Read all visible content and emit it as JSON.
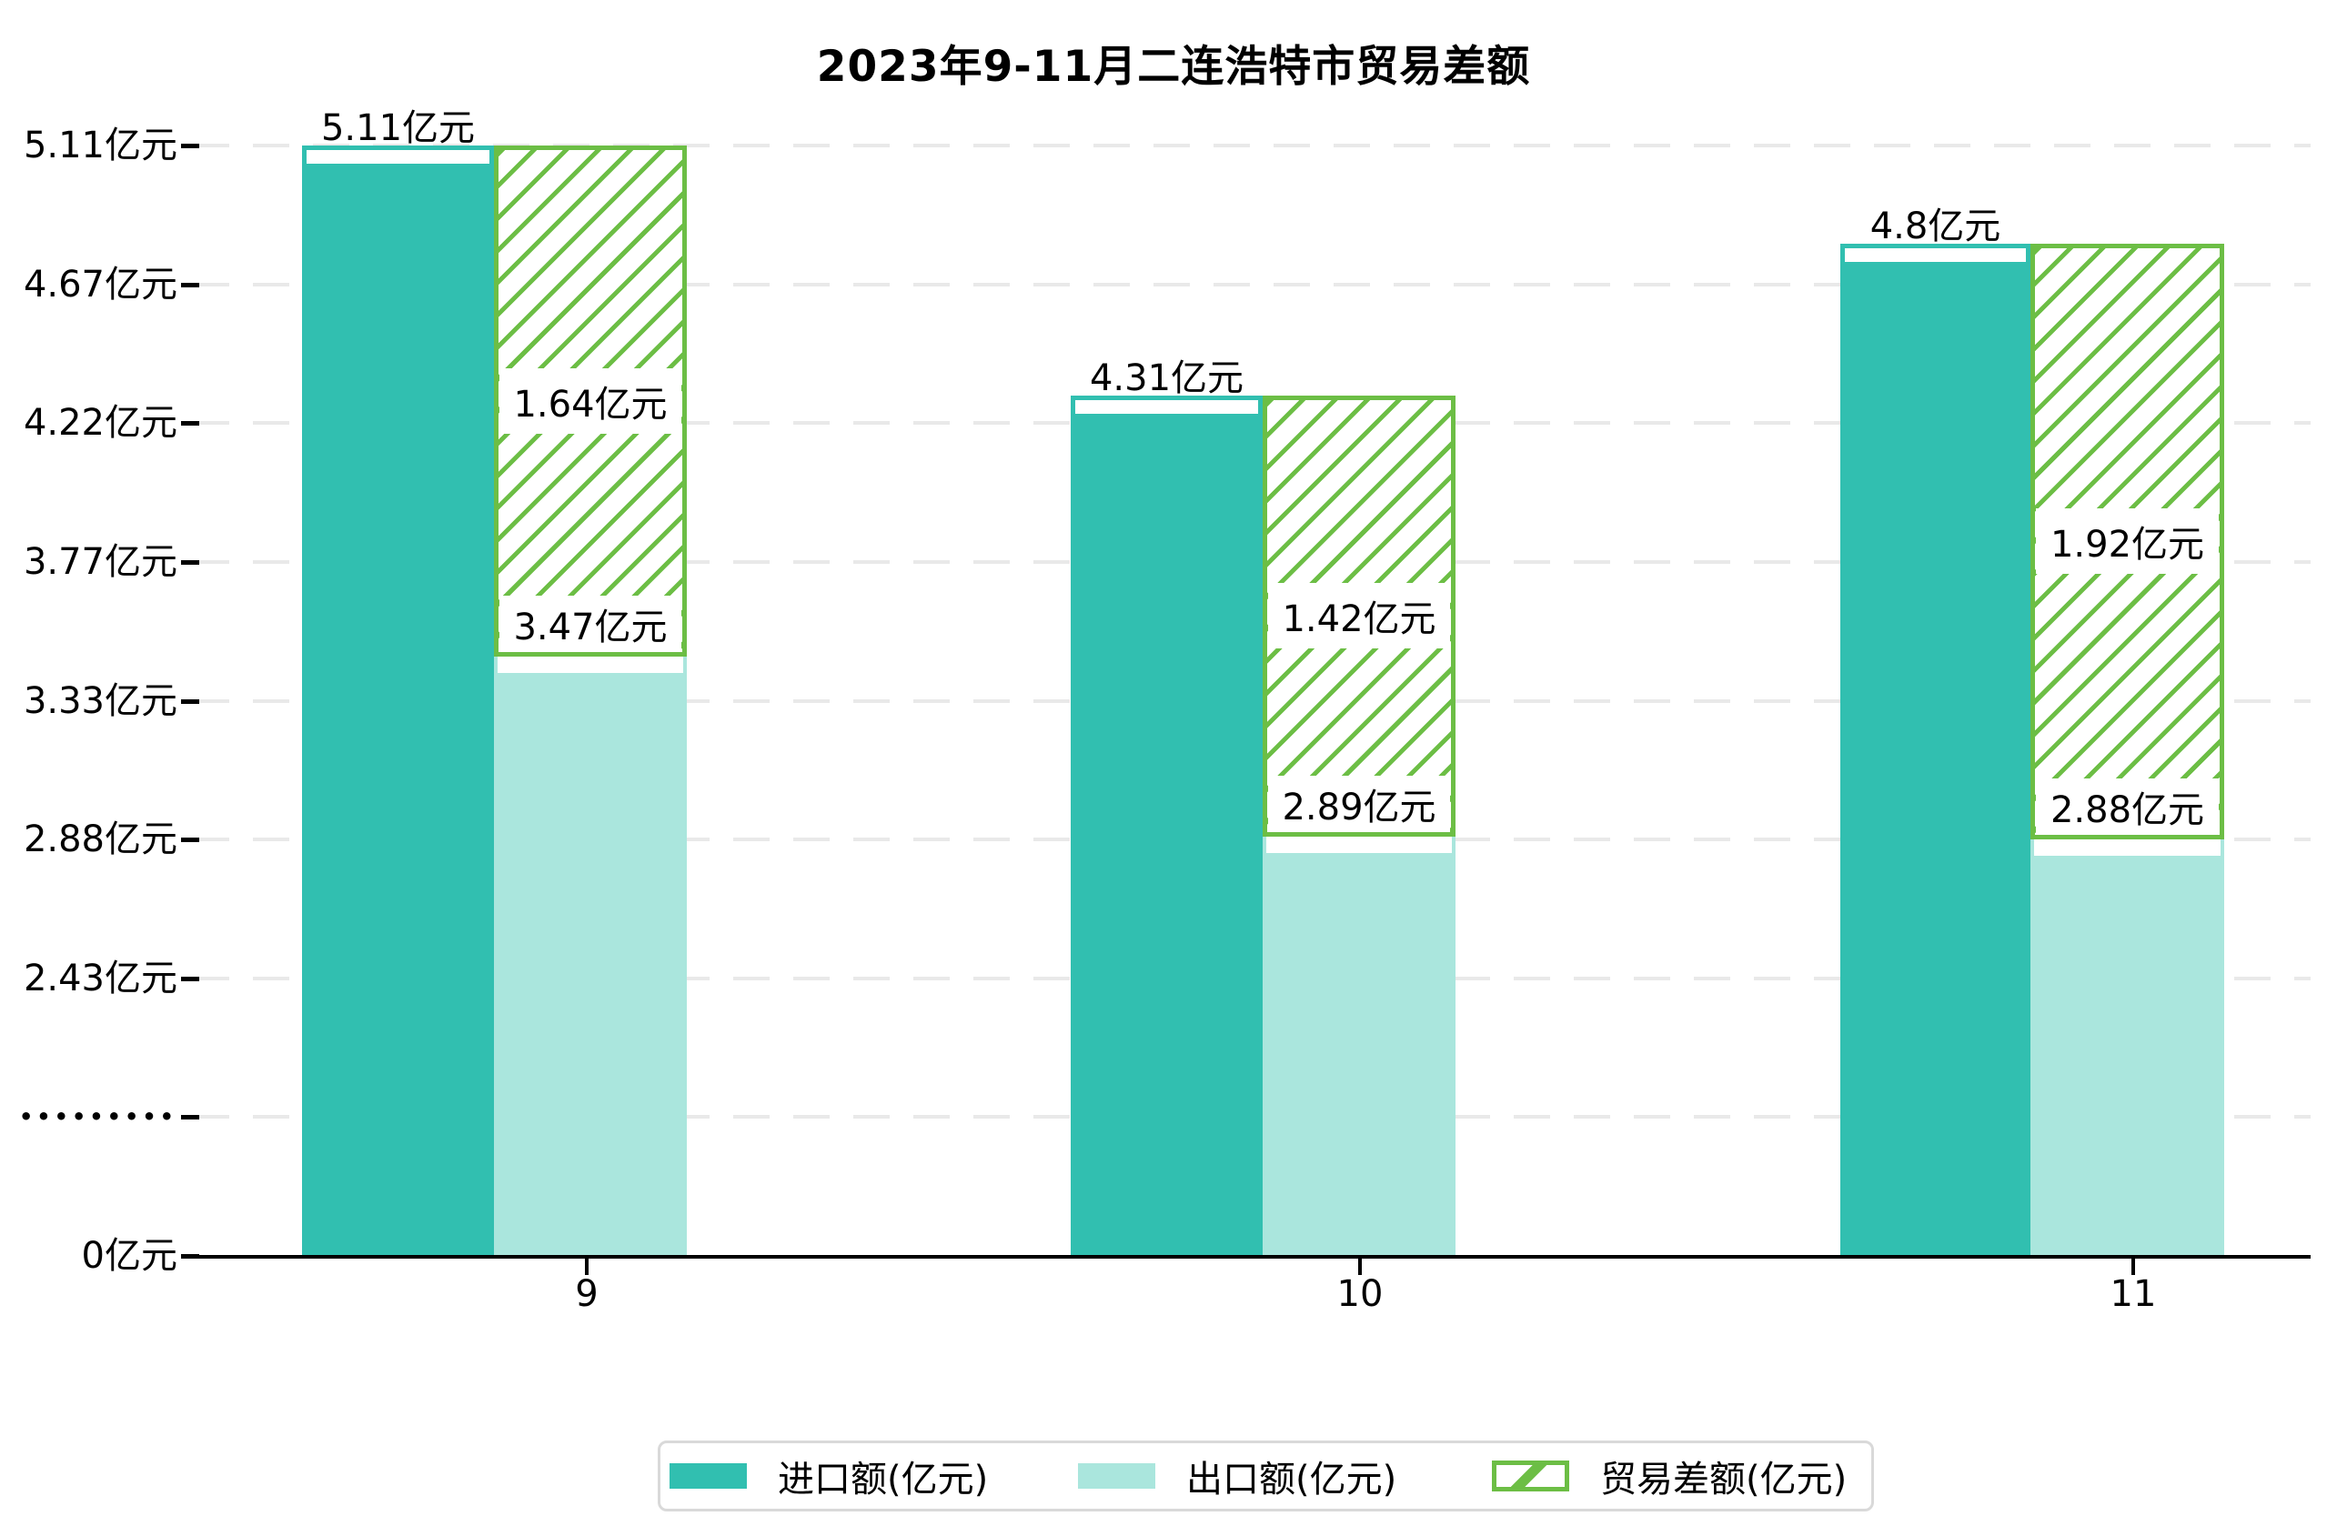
{
  "title": "2023年9-11月二连浩特市贸易差额",
  "y_axis": {
    "top_y": 160,
    "bottom_y": 1381,
    "ticks": [
      {
        "label": "5.11亿元",
        "value": 5.11
      },
      {
        "label": "4.67亿元",
        "value": 4.67
      },
      {
        "label": "4.22亿元",
        "value": 4.22
      },
      {
        "label": "3.77亿元",
        "value": 3.77
      },
      {
        "label": "3.33亿元",
        "value": 3.33
      },
      {
        "label": "2.88亿元",
        "value": 2.88
      },
      {
        "label": "2.43亿元",
        "value": 2.43
      },
      {
        "label": "•••••••••",
        "value": null
      },
      {
        "label": "0亿元",
        "value": 0
      }
    ]
  },
  "x_axis": {
    "categories": [
      {
        "label": "9",
        "tick_x": 645
      },
      {
        "label": "10",
        "tick_x": 1495
      },
      {
        "label": "11",
        "tick_x": 2345
      }
    ]
  },
  "groups": [
    {
      "category": "9",
      "import_value": 5.11,
      "export_value": 3.47,
      "diff_value": 1.64,
      "import_label": "5.11亿元",
      "export_label": "3.47亿元",
      "diff_label": "1.64亿元",
      "import_x": 332,
      "import_w": 211,
      "diff_x": 543,
      "diff_w": 212
    },
    {
      "category": "10",
      "import_value": 4.31,
      "export_value": 2.89,
      "diff_value": 1.42,
      "import_label": "4.31亿元",
      "export_label": "2.89亿元",
      "diff_label": "1.42亿元",
      "import_x": 1177,
      "import_w": 211,
      "diff_x": 1388,
      "diff_w": 212
    },
    {
      "category": "11",
      "import_value": 4.8,
      "export_value": 2.88,
      "diff_value": 1.92,
      "import_label": "4.8亿元",
      "export_label": "2.88亿元",
      "diff_label": "1.92亿元",
      "import_x": 2023,
      "import_w": 209,
      "diff_x": 2232,
      "diff_w": 213
    }
  ],
  "legend": {
    "items": [
      {
        "label": "进口额(亿元)",
        "swatch": "import"
      },
      {
        "label": "出口额(亿元)",
        "swatch": "export"
      },
      {
        "label": "贸易差额(亿元)",
        "swatch": "diff"
      }
    ]
  },
  "colors": {
    "import": "#31bfb0",
    "export": "#aae6dd",
    "diff_green": "#6cbe45",
    "grid": "#e9e9e9",
    "axis": "#000000",
    "legend_border": "#d9d9d9"
  },
  "chart_data": {
    "type": "bar",
    "title": "2023年9-11月二连浩特市贸易差额",
    "categories": [
      "9",
      "10",
      "11"
    ],
    "series": [
      {
        "name": "进口额(亿元)",
        "values": [
          5.11,
          4.31,
          4.8
        ]
      },
      {
        "name": "出口额(亿元)",
        "values": [
          3.47,
          2.89,
          2.88
        ]
      },
      {
        "name": "贸易差额(亿元)",
        "values": [
          1.64,
          1.42,
          1.92
        ]
      }
    ],
    "value_unit": "亿元",
    "y_tick_labels": [
      "5.11亿元",
      "4.67亿元",
      "4.22亿元",
      "3.77亿元",
      "3.33亿元",
      "2.88亿元",
      "2.43亿元",
      "•••••••••",
      "0亿元"
    ],
    "broken_axis": true,
    "grid": "dashed-horizontal",
    "legend_position": "bottom",
    "bar_style_notes": "diff series drawn as white bar with green diagonal hatch stacked above export level up to import level"
  }
}
